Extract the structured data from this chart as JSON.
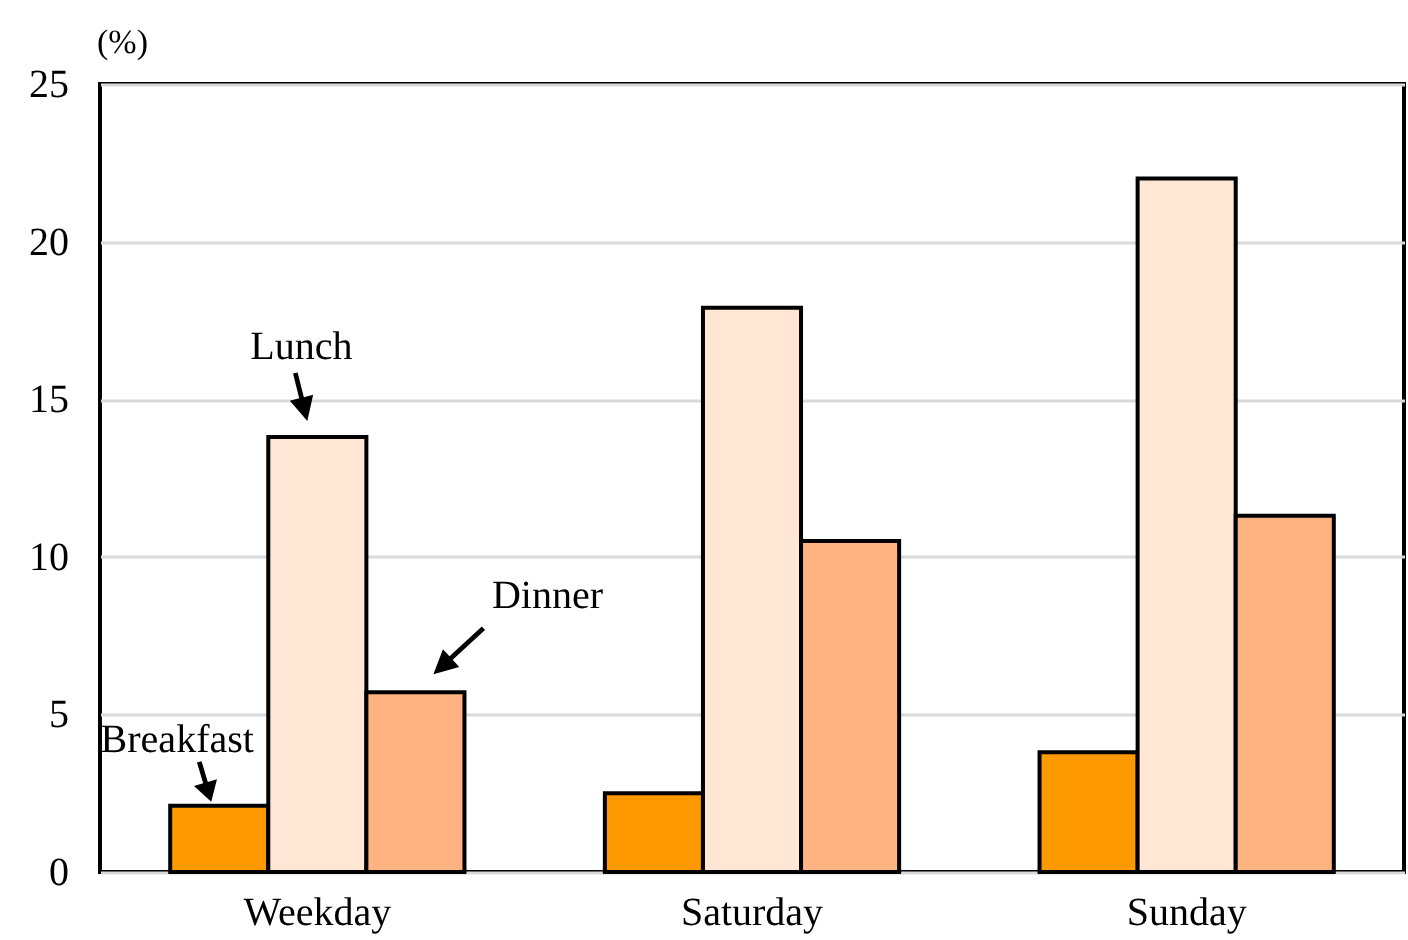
{
  "chart_data": {
    "type": "bar",
    "ylabel": "(%)",
    "categories": [
      "Weekday",
      "Saturday",
      "Sunday"
    ],
    "series": [
      {
        "name": "Breakfast",
        "color": "#ff9900",
        "values": [
          2.1,
          2.5,
          3.8
        ]
      },
      {
        "name": "Lunch",
        "color": "#ffe6d5",
        "values": [
          13.8,
          17.9,
          22.0
        ]
      },
      {
        "name": "Dinner",
        "color": "#ffb380",
        "values": [
          5.7,
          10.5,
          11.3
        ]
      }
    ],
    "ylim": [
      0,
      25
    ],
    "yticks": [
      0,
      5,
      10,
      15,
      20,
      25
    ],
    "grid": "y"
  }
}
